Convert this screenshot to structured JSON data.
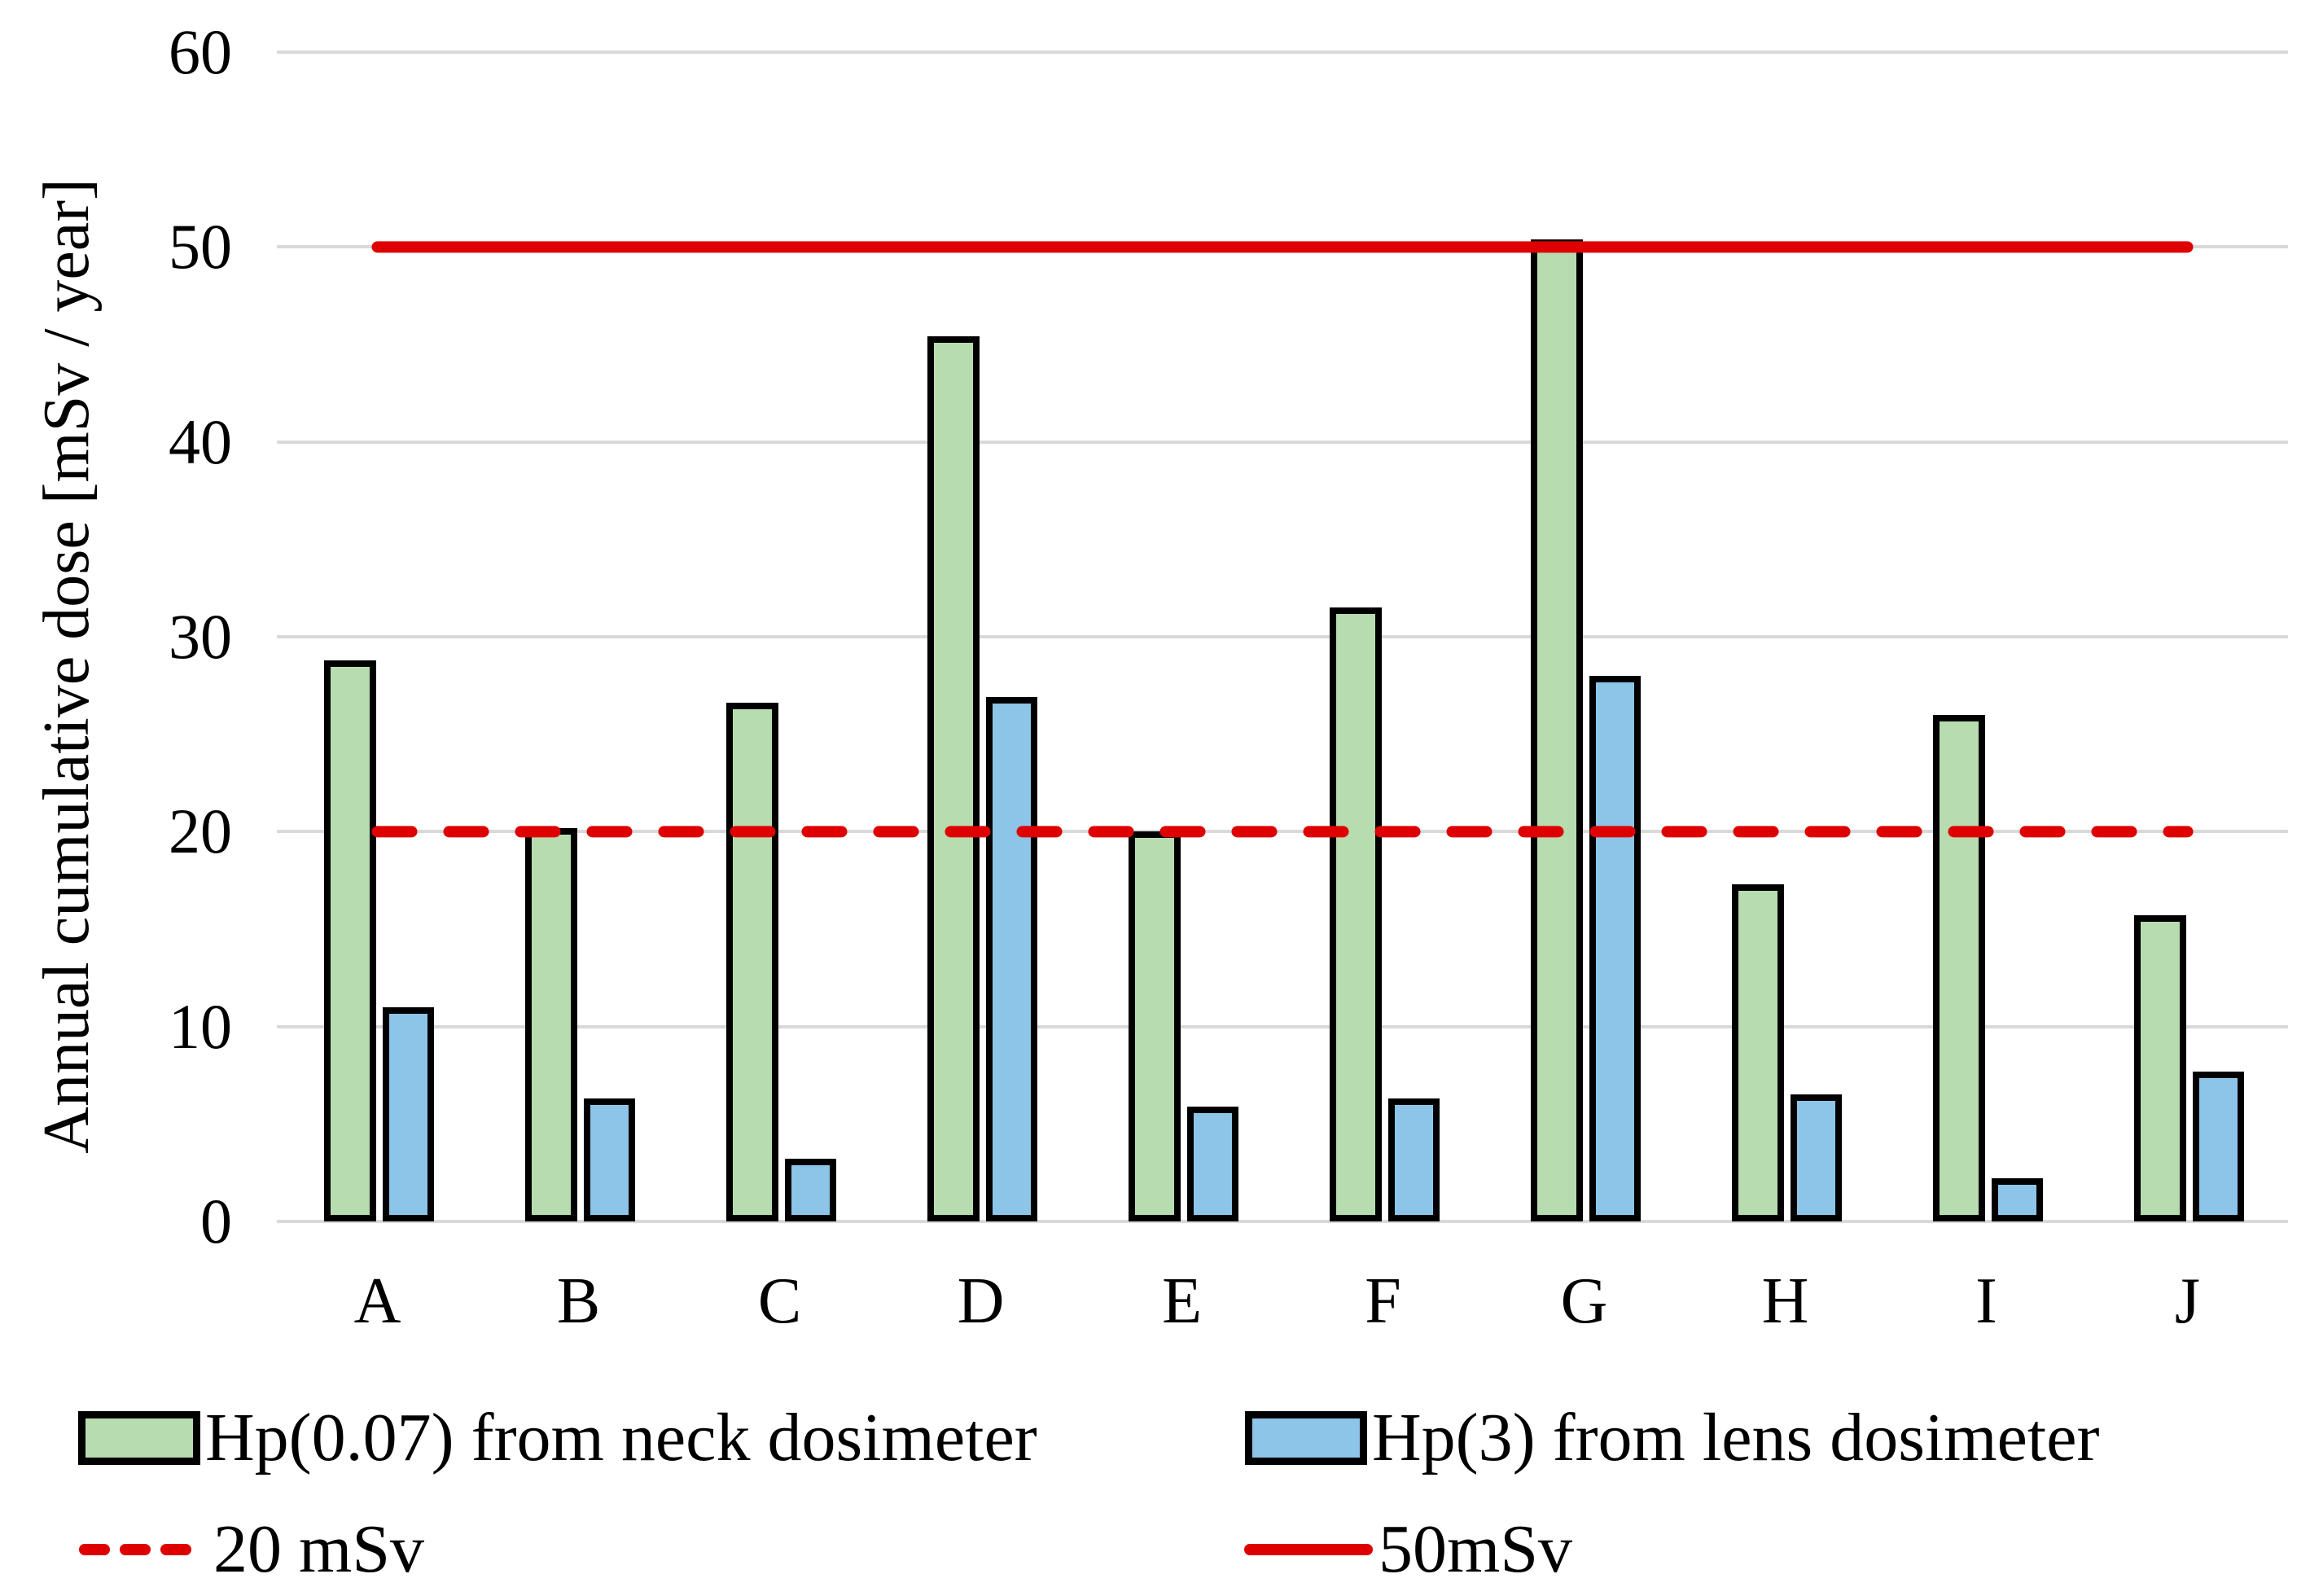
{
  "chart_data": {
    "type": "bar",
    "title": "",
    "ylabel": "Annual cumulative dose [mSv / year]",
    "xlabel": "",
    "categories": [
      "A",
      "B",
      "C",
      "D",
      "E",
      "F",
      "G",
      "H",
      "I",
      "J"
    ],
    "series": [
      {
        "name": "Hp(0.07) from neck dosimeter",
        "color": "#b7dcb0",
        "values": [
          28.8,
          20.2,
          26.6,
          45.4,
          20.0,
          31.5,
          50.4,
          17.3,
          26.0,
          15.7
        ]
      },
      {
        "name": "Hp(3) from lens dosimeter",
        "color": "#8dc5e9",
        "values": [
          11.0,
          6.3,
          3.2,
          26.9,
          5.9,
          6.3,
          28.0,
          6.5,
          2.2,
          7.7
        ]
      }
    ],
    "reference_lines": [
      {
        "name": "20 mSv",
        "value": 20,
        "style": "dashed",
        "color": "#de0000"
      },
      {
        "name": "50mSv",
        "value": 50,
        "style": "solid",
        "color": "#de0000"
      }
    ],
    "ylim": [
      0,
      60
    ],
    "yticks": [
      0,
      10,
      20,
      30,
      40,
      50,
      60
    ],
    "grid": true,
    "gridline_color": "#d9d9d9",
    "bar_outline_color": "#000000",
    "legend_position": "bottom"
  }
}
